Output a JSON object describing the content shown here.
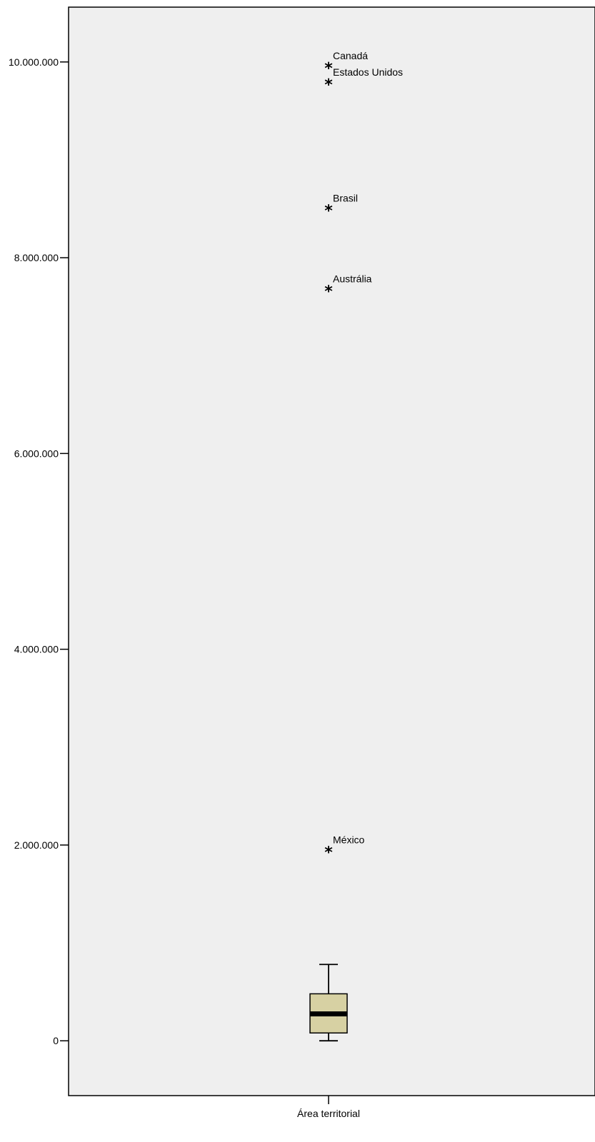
{
  "chart_data": {
    "type": "boxplot",
    "title": "",
    "xlabel": "",
    "ylabel": "",
    "category": "Área territorial",
    "ylim": [
      -560000,
      10560000
    ],
    "y_ticks": [
      0,
      2000000,
      4000000,
      6000000,
      8000000,
      10000000
    ],
    "y_tick_labels": [
      "0",
      "2.000.000",
      "4.000.000",
      "6.000.000",
      "8.000.000",
      "10.000.000"
    ],
    "box": {
      "whisker_low": 0,
      "q1": 80000,
      "median": 275000,
      "q3": 480000,
      "whisker_high": 780000
    },
    "outliers": [
      {
        "label": "Canadá",
        "value": 9970000
      },
      {
        "label": "Estados Unidos",
        "value": 9800000
      },
      {
        "label": "Brasil",
        "value": 8515000
      },
      {
        "label": "Austrália",
        "value": 7690000
      },
      {
        "label": "México",
        "value": 1960000
      }
    ],
    "colors": {
      "plot_background": "#efefef",
      "box_fill": "#d7d1a3",
      "stroke": "#000000"
    },
    "grid": false,
    "legend": "none"
  }
}
